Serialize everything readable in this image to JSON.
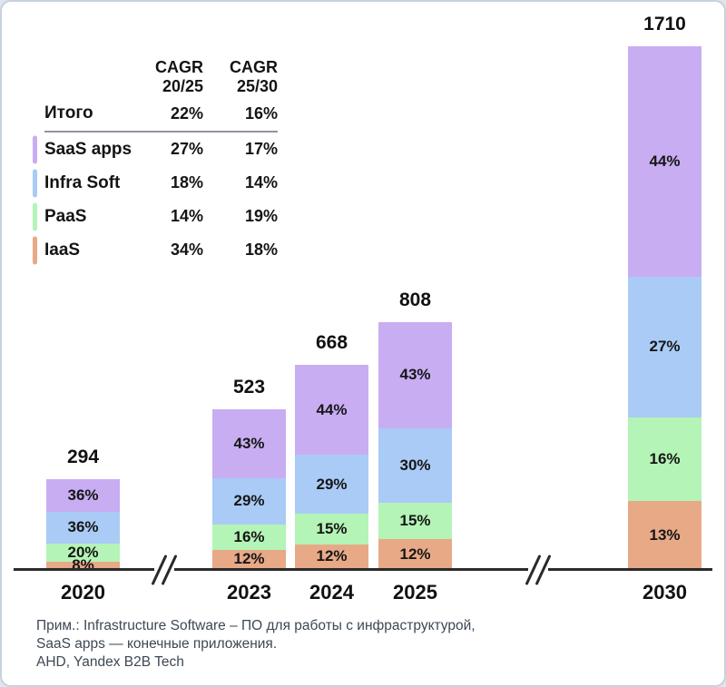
{
  "legend": {
    "headers": [
      {
        "line1": "CAGR",
        "line2": "20/25"
      },
      {
        "line1": "CAGR",
        "line2": "25/30"
      }
    ],
    "total_row": {
      "label": "Итого",
      "cagr_20_25": "22%",
      "cagr_25_30": "16%"
    },
    "rows": [
      {
        "label": "SaaS apps",
        "color": "#C8ADF3",
        "cagr_20_25": "27%",
        "cagr_25_30": "17%"
      },
      {
        "label": "Infra Soft",
        "color": "#A9CBF6",
        "cagr_20_25": "18%",
        "cagr_25_30": "14%"
      },
      {
        "label": "PaaS",
        "color": "#B4F4B6",
        "cagr_20_25": "14%",
        "cagr_25_30": "19%"
      },
      {
        "label": "IaaS",
        "color": "#E8A987",
        "cagr_20_25": "34%",
        "cagr_25_30": "18%"
      }
    ]
  },
  "chart_data": {
    "type": "bar",
    "stacking": "percent-stacked",
    "categories": [
      "2020",
      "2023",
      "2024",
      "2025",
      "2030"
    ],
    "totals": [
      294,
      523,
      668,
      808,
      1710
    ],
    "series_bottom_to_top": [
      {
        "name": "IaaS",
        "color": "#E8A987",
        "percents": [
          8,
          12,
          12,
          12,
          13
        ]
      },
      {
        "name": "PaaS",
        "color": "#B4F4B6",
        "percents": [
          20,
          16,
          15,
          15,
          16
        ]
      },
      {
        "name": "Infra Soft",
        "color": "#A9CBF6",
        "percents": [
          36,
          29,
          29,
          30,
          27
        ]
      },
      {
        "name": "SaaS apps",
        "color": "#C8ADF3",
        "percents": [
          36,
          43,
          44,
          43,
          44
        ]
      }
    ],
    "cagr_table": {
      "columns": [
        "CAGR 20/25",
        "CAGR 25/30"
      ],
      "total": [
        "22%",
        "16%"
      ],
      "SaaS apps": [
        "27%",
        "17%"
      ],
      "Infra Soft": [
        "18%",
        "14%"
      ],
      "PaaS": [
        "14%",
        "19%"
      ],
      "IaaS": [
        "34%",
        "18%"
      ]
    },
    "axis_breaks_between": [
      [
        "2020",
        "2023"
      ],
      [
        "2025",
        "2030"
      ]
    ],
    "legend_position": "top-left",
    "grid": false
  },
  "footer": {
    "lines": [
      "Прим.: Infrastructure Software – ПО для работы с инфраструктурой,",
      "SaaS apps — конечные приложения.",
      "AHD, Yandex B2B Tech"
    ]
  },
  "colors": {
    "saas": "#C8ADF3",
    "infra_soft": "#A9CBF6",
    "paas": "#B4F4B6",
    "iaas": "#E8A987",
    "axis": "#2A2A2A",
    "text": "#141414",
    "footer_text": "#3E4854",
    "card_border": "#C8D1DE"
  }
}
